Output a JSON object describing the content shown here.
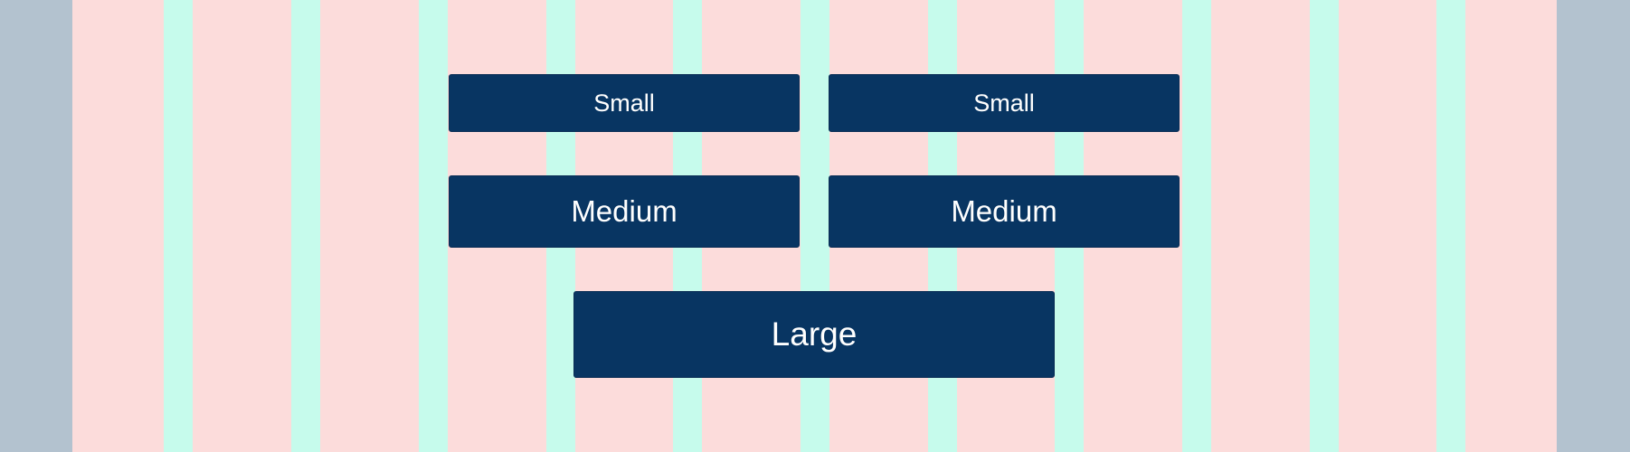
{
  "colors": {
    "margin": "#b3c2cf",
    "column": "#fcdcdb",
    "gutter": "#c6fbec",
    "button_background": "#083562",
    "button_text": "#ffffff"
  },
  "buttons": {
    "small_left": "Small",
    "small_right": "Small",
    "medium_left": "Medium",
    "medium_right": "Medium",
    "large": "Large"
  }
}
